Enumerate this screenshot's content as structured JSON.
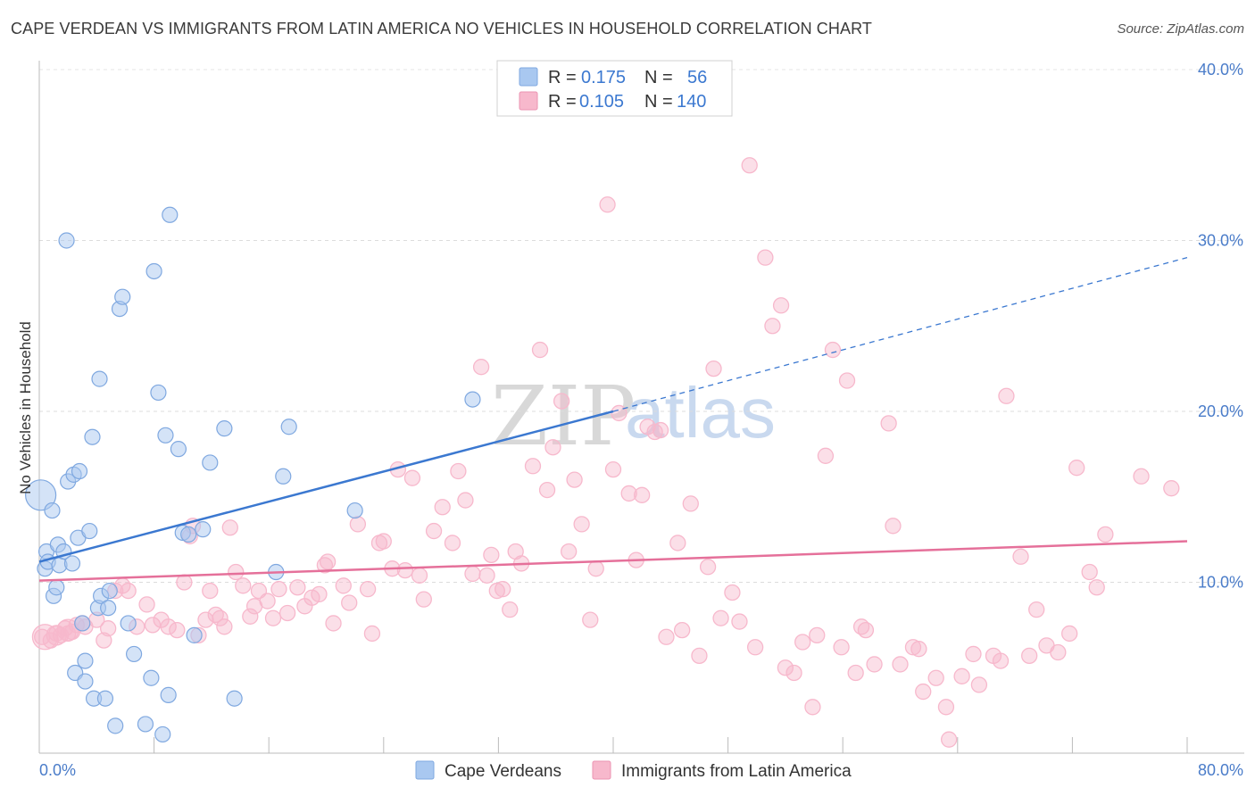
{
  "header": {
    "title": "CAPE VERDEAN VS IMMIGRANTS FROM LATIN AMERICA NO VEHICLES IN HOUSEHOLD CORRELATION CHART",
    "source": "Source: ZipAtlas.com"
  },
  "legend": {
    "rows": [
      {
        "r_label": "R =",
        "r_value": "0.175",
        "n_label": "N =",
        "n_value": "56",
        "color": "#a9c8f0"
      },
      {
        "r_label": "R =",
        "r_value": "0.105",
        "n_label": "N =",
        "n_value": "140",
        "color": "#f7b8cc"
      }
    ]
  },
  "bottom_legend": {
    "items": [
      {
        "label": "Cape Verdeans",
        "color": "#a9c8f0"
      },
      {
        "label": "Immigrants from Latin America",
        "color": "#f7b8cc"
      }
    ]
  },
  "watermark": {
    "part1": "ZIP",
    "part2": "atlas"
  },
  "chart_data": {
    "type": "scatter",
    "ylabel": "No Vehicles in Household",
    "xlim": [
      0,
      80
    ],
    "ylim": [
      0,
      40
    ],
    "x_tick_labels": [
      "0.0%",
      "80.0%"
    ],
    "y_tick_labels": [
      "10.0%",
      "20.0%",
      "30.0%",
      "40.0%"
    ],
    "y_ticks": [
      10,
      20,
      30,
      40
    ],
    "grid": true,
    "colors": {
      "blue": "#3b78d0",
      "pink": "#e5709a",
      "blue_fill": "#a9c8f0",
      "pink_fill": "#f7b8cc"
    },
    "series": [
      {
        "name": "Cape Verdeans",
        "trend": {
          "x": [
            0,
            40
          ],
          "y": [
            11.2,
            20.0
          ],
          "dashed_to": [
            80,
            29.0
          ]
        },
        "points": [
          [
            0.1,
            15.1
          ],
          [
            0.4,
            10.8
          ],
          [
            0.5,
            11.8
          ],
          [
            0.6,
            11.2
          ],
          [
            0.9,
            14.2
          ],
          [
            1.0,
            9.2
          ],
          [
            1.2,
            9.7
          ],
          [
            1.3,
            12.2
          ],
          [
            1.4,
            11.0
          ],
          [
            1.7,
            11.8
          ],
          [
            1.9,
            30.0
          ],
          [
            2.0,
            15.9
          ],
          [
            2.3,
            11.1
          ],
          [
            2.4,
            16.3
          ],
          [
            2.5,
            4.7
          ],
          [
            2.7,
            12.6
          ],
          [
            2.8,
            16.5
          ],
          [
            3.0,
            7.6
          ],
          [
            3.2,
            4.2
          ],
          [
            3.2,
            5.4
          ],
          [
            3.5,
            13.0
          ],
          [
            3.7,
            18.5
          ],
          [
            3.8,
            3.2
          ],
          [
            4.2,
            21.9
          ],
          [
            4.1,
            8.5
          ],
          [
            4.3,
            9.2
          ],
          [
            4.6,
            3.2
          ],
          [
            4.8,
            8.5
          ],
          [
            4.9,
            9.5
          ],
          [
            5.3,
            1.6
          ],
          [
            5.6,
            26.0
          ],
          [
            5.8,
            26.7
          ],
          [
            6.2,
            7.6
          ],
          [
            6.6,
            5.8
          ],
          [
            7.4,
            1.7
          ],
          [
            7.8,
            4.4
          ],
          [
            8.0,
            28.2
          ],
          [
            8.3,
            21.1
          ],
          [
            8.6,
            1.1
          ],
          [
            8.8,
            18.6
          ],
          [
            9.0,
            3.4
          ],
          [
            9.1,
            31.5
          ],
          [
            9.7,
            17.8
          ],
          [
            10.0,
            12.9
          ],
          [
            10.4,
            12.8
          ],
          [
            10.8,
            6.9
          ],
          [
            11.4,
            13.1
          ],
          [
            11.9,
            17.0
          ],
          [
            12.9,
            19.0
          ],
          [
            13.6,
            3.2
          ],
          [
            16.5,
            10.6
          ],
          [
            17.0,
            16.2
          ],
          [
            17.4,
            19.1
          ],
          [
            22.0,
            14.2
          ],
          [
            30.2,
            20.7
          ]
        ]
      },
      {
        "name": "Immigrants from Latin America",
        "trend": {
          "x": [
            0,
            80
          ],
          "y": [
            10.1,
            12.4
          ]
        },
        "points": [
          [
            0.2,
            6.8
          ],
          [
            0.8,
            6.6
          ],
          [
            1.2,
            7.0
          ],
          [
            1.5,
            6.9
          ],
          [
            1.8,
            7.3
          ],
          [
            2.0,
            7.0
          ],
          [
            2.3,
            7.1
          ],
          [
            2.6,
            7.5
          ],
          [
            3.0,
            7.6
          ],
          [
            3.2,
            7.4
          ],
          [
            4.0,
            7.8
          ],
          [
            4.5,
            6.6
          ],
          [
            4.8,
            7.3
          ],
          [
            5.3,
            9.5
          ],
          [
            5.8,
            9.8
          ],
          [
            6.2,
            9.5
          ],
          [
            6.8,
            7.4
          ],
          [
            7.5,
            8.7
          ],
          [
            7.9,
            7.5
          ],
          [
            8.5,
            7.8
          ],
          [
            9.0,
            7.4
          ],
          [
            9.6,
            7.2
          ],
          [
            10.1,
            10.0
          ],
          [
            10.5,
            12.7
          ],
          [
            10.7,
            13.3
          ],
          [
            11.1,
            6.9
          ],
          [
            11.6,
            7.8
          ],
          [
            11.9,
            9.5
          ],
          [
            12.3,
            8.1
          ],
          [
            12.6,
            7.9
          ],
          [
            12.9,
            7.4
          ],
          [
            13.3,
            13.2
          ],
          [
            13.7,
            10.6
          ],
          [
            14.2,
            9.8
          ],
          [
            14.7,
            8.0
          ],
          [
            15.0,
            8.6
          ],
          [
            15.3,
            9.5
          ],
          [
            15.9,
            8.9
          ],
          [
            16.3,
            7.9
          ],
          [
            16.7,
            9.6
          ],
          [
            17.3,
            8.2
          ],
          [
            18.0,
            9.7
          ],
          [
            18.5,
            8.6
          ],
          [
            19.0,
            9.1
          ],
          [
            19.5,
            9.3
          ],
          [
            19.9,
            11.0
          ],
          [
            20.1,
            11.2
          ],
          [
            20.5,
            7.6
          ],
          [
            21.2,
            9.8
          ],
          [
            21.6,
            8.8
          ],
          [
            22.2,
            13.4
          ],
          [
            22.9,
            9.6
          ],
          [
            23.2,
            7.0
          ],
          [
            23.7,
            12.3
          ],
          [
            24.0,
            12.4
          ],
          [
            24.6,
            10.8
          ],
          [
            25.0,
            16.6
          ],
          [
            25.5,
            10.7
          ],
          [
            26.0,
            16.1
          ],
          [
            26.5,
            10.4
          ],
          [
            26.8,
            9.0
          ],
          [
            27.5,
            13.0
          ],
          [
            28.1,
            14.4
          ],
          [
            28.8,
            12.3
          ],
          [
            29.2,
            16.5
          ],
          [
            29.7,
            14.8
          ],
          [
            30.2,
            10.5
          ],
          [
            30.8,
            22.6
          ],
          [
            31.2,
            10.4
          ],
          [
            31.5,
            11.6
          ],
          [
            31.9,
            9.5
          ],
          [
            32.3,
            9.6
          ],
          [
            32.8,
            8.4
          ],
          [
            33.2,
            11.8
          ],
          [
            33.6,
            11.1
          ],
          [
            34.4,
            16.8
          ],
          [
            34.9,
            23.6
          ],
          [
            35.4,
            15.4
          ],
          [
            35.8,
            17.9
          ],
          [
            36.4,
            20.6
          ],
          [
            36.9,
            11.8
          ],
          [
            37.3,
            16.0
          ],
          [
            37.8,
            13.4
          ],
          [
            38.4,
            7.8
          ],
          [
            38.8,
            10.8
          ],
          [
            39.6,
            32.1
          ],
          [
            40.0,
            16.6
          ],
          [
            40.4,
            19.9
          ],
          [
            41.1,
            15.2
          ],
          [
            41.6,
            11.3
          ],
          [
            42.0,
            15.1
          ],
          [
            42.4,
            19.1
          ],
          [
            42.9,
            18.8
          ],
          [
            43.3,
            18.9
          ],
          [
            43.7,
            6.8
          ],
          [
            44.5,
            12.3
          ],
          [
            44.8,
            7.2
          ],
          [
            45.4,
            14.6
          ],
          [
            46.0,
            5.7
          ],
          [
            46.6,
            10.9
          ],
          [
            47.0,
            22.5
          ],
          [
            47.5,
            7.9
          ],
          [
            48.3,
            9.4
          ],
          [
            48.8,
            7.7
          ],
          [
            49.5,
            34.4
          ],
          [
            49.9,
            6.2
          ],
          [
            50.6,
            29.0
          ],
          [
            51.1,
            25.0
          ],
          [
            51.7,
            26.2
          ],
          [
            52.0,
            5.0
          ],
          [
            52.6,
            4.7
          ],
          [
            53.2,
            6.5
          ],
          [
            53.9,
            2.7
          ],
          [
            54.2,
            6.9
          ],
          [
            54.8,
            17.4
          ],
          [
            55.3,
            23.6
          ],
          [
            55.9,
            6.2
          ],
          [
            56.3,
            21.8
          ],
          [
            56.9,
            4.7
          ],
          [
            57.3,
            7.4
          ],
          [
            57.6,
            7.2
          ],
          [
            58.2,
            5.2
          ],
          [
            59.2,
            19.3
          ],
          [
            59.5,
            13.3
          ],
          [
            60.0,
            5.2
          ],
          [
            60.9,
            6.2
          ],
          [
            61.3,
            6.1
          ],
          [
            61.6,
            3.6
          ],
          [
            62.5,
            4.4
          ],
          [
            63.2,
            2.7
          ],
          [
            63.4,
            0.8
          ],
          [
            64.3,
            4.5
          ],
          [
            65.1,
            5.8
          ],
          [
            65.5,
            4.0
          ],
          [
            66.5,
            5.7
          ],
          [
            67.0,
            5.4
          ],
          [
            67.4,
            20.9
          ],
          [
            68.4,
            11.5
          ],
          [
            69.0,
            5.7
          ],
          [
            69.5,
            8.4
          ],
          [
            70.2,
            6.3
          ],
          [
            71.0,
            5.9
          ],
          [
            71.8,
            7.0
          ],
          [
            72.3,
            16.7
          ],
          [
            73.2,
            10.6
          ],
          [
            73.7,
            9.7
          ],
          [
            74.3,
            12.8
          ],
          [
            76.8,
            16.2
          ],
          [
            78.9,
            15.5
          ]
        ]
      }
    ]
  }
}
